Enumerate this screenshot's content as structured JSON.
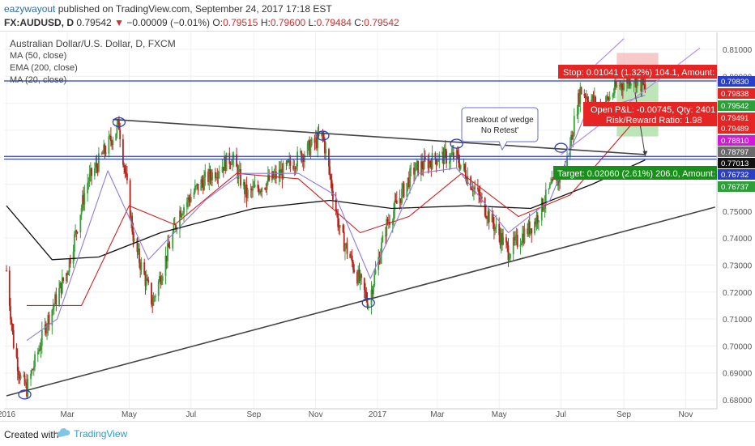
{
  "header": {
    "author": "eazywayout",
    "published": "published on TradingView.com, September 24, 2017 17:18 EST",
    "symbol": "FX:AUDUSD, D",
    "price": "0.79542",
    "change": "−0.00009 (−0.01%)",
    "o_label": "O:",
    "o": "0.79515",
    "h_label": "H:",
    "h": "0.79600",
    "l_label": "L:",
    "l": "0.79484",
    "c_label": "C:",
    "c": "0.79542"
  },
  "legend": {
    "title": "Australian Dollar/U.S. Dollar, D, FXCM",
    "ind1": "MA (50, close)",
    "ind2": "EMA (200, close)",
    "ind3": "MA (20, close)"
  },
  "annotations": {
    "breakout_line1": "Breakout of wedge",
    "breakout_line2": "No Retest'",
    "stop": "Stop: 0.01041 (1.32%) 104.1, Amount:",
    "target": "Target: 0.02060 (2.61%) 206.0, Amount:",
    "pnl": "Open P&L: -0.00745, Qty: 2401",
    "rr": "Risk/Reward Ratio: 1.98"
  },
  "footer": {
    "created": "Created with",
    "brand": "TradingView"
  },
  "colors": {
    "up": "#3a9e3a",
    "down": "#b5241c",
    "ma50": "#d42020",
    "ema200": "#111111",
    "ma20": "#8f7be0",
    "hline": "#2b3fc6",
    "trend": "#444444",
    "stop_fill": "#f4b8b8",
    "target_fill": "#a8dca0",
    "stop_label": "#e52424",
    "target_label": "#1b8f1b"
  },
  "chart_data": {
    "type": "candlestick",
    "symbol": "AUDUSD",
    "timeframe": "D",
    "ylim": [
      0.6775,
      0.814
    ],
    "x_ticks": [
      "2016",
      "Mar",
      "May",
      "Jul",
      "Sep",
      "Nov",
      "2017",
      "Mar",
      "May",
      "Jul",
      "Sep",
      "Nov"
    ],
    "y_ticks": [
      "0.81000",
      "0.80000",
      "0.76000",
      "0.75000",
      "0.74000",
      "0.73000",
      "0.72000",
      "0.71000",
      "0.70000",
      "0.69000",
      "0.68000"
    ],
    "price_key_points": [
      {
        "date": "2016-01-01",
        "price": 0.728
      },
      {
        "date": "2016-01-08",
        "price": 0.701
      },
      {
        "date": "2016-01-15",
        "price": 0.688
      },
      {
        "date": "2016-01-21",
        "price": 0.684
      },
      {
        "date": "2016-02-10",
        "price": 0.709
      },
      {
        "date": "2016-03-01",
        "price": 0.728
      },
      {
        "date": "2016-03-20",
        "price": 0.76
      },
      {
        "date": "2016-04-21",
        "price": 0.782
      },
      {
        "date": "2016-05-06",
        "price": 0.738
      },
      {
        "date": "2016-05-24",
        "price": 0.716
      },
      {
        "date": "2016-06-20",
        "price": 0.75
      },
      {
        "date": "2016-07-10",
        "price": 0.76
      },
      {
        "date": "2016-08-10",
        "price": 0.77
      },
      {
        "date": "2016-08-25",
        "price": 0.756
      },
      {
        "date": "2016-10-01",
        "price": 0.765
      },
      {
        "date": "2016-11-08",
        "price": 0.778
      },
      {
        "date": "2016-11-25",
        "price": 0.742
      },
      {
        "date": "2016-12-23",
        "price": 0.716
      },
      {
        "date": "2017-01-10",
        "price": 0.745
      },
      {
        "date": "2017-02-05",
        "price": 0.765
      },
      {
        "date": "2017-03-01",
        "price": 0.77
      },
      {
        "date": "2017-03-20",
        "price": 0.77
      },
      {
        "date": "2017-04-10",
        "price": 0.756
      },
      {
        "date": "2017-05-10",
        "price": 0.735
      },
      {
        "date": "2017-06-05",
        "price": 0.746
      },
      {
        "date": "2017-06-20",
        "price": 0.758
      },
      {
        "date": "2017-07-05",
        "price": 0.765
      },
      {
        "date": "2017-07-20",
        "price": 0.795
      },
      {
        "date": "2017-08-10",
        "price": 0.788
      },
      {
        "date": "2017-08-25",
        "price": 0.796
      },
      {
        "date": "2017-09-10",
        "price": 0.8
      },
      {
        "date": "2017-09-22",
        "price": 0.7954
      }
    ],
    "ma50_key_points": [
      {
        "date": "2016-01-21",
        "price": 0.715
      },
      {
        "date": "2016-03-15",
        "price": 0.715
      },
      {
        "date": "2016-05-01",
        "price": 0.752
      },
      {
        "date": "2016-06-15",
        "price": 0.745
      },
      {
        "date": "2016-08-15",
        "price": 0.764
      },
      {
        "date": "2016-10-15",
        "price": 0.762
      },
      {
        "date": "2016-12-15",
        "price": 0.742
      },
      {
        "date": "2017-02-01",
        "price": 0.748
      },
      {
        "date": "2017-03-25",
        "price": 0.764
      },
      {
        "date": "2017-05-20",
        "price": 0.748
      },
      {
        "date": "2017-07-10",
        "price": 0.756
      },
      {
        "date": "2017-09-22",
        "price": 0.788
      }
    ],
    "ema200_key_points": [
      {
        "date": "2016-01-01",
        "price": 0.752
      },
      {
        "date": "2016-02-15",
        "price": 0.732
      },
      {
        "date": "2016-04-01",
        "price": 0.733
      },
      {
        "date": "2016-06-01",
        "price": 0.742
      },
      {
        "date": "2016-09-01",
        "price": 0.751
      },
      {
        "date": "2016-11-15",
        "price": 0.754
      },
      {
        "date": "2017-01-15",
        "price": 0.751
      },
      {
        "date": "2017-04-01",
        "price": 0.752
      },
      {
        "date": "2017-06-01",
        "price": 0.751
      },
      {
        "date": "2017-08-01",
        "price": 0.76
      },
      {
        "date": "2017-09-22",
        "price": 0.769
      }
    ],
    "ma20_key_points": [
      {
        "date": "2016-01-21",
        "price": 0.702
      },
      {
        "date": "2016-02-20",
        "price": 0.71
      },
      {
        "date": "2016-04-10",
        "price": 0.765
      },
      {
        "date": "2016-05-20",
        "price": 0.732
      },
      {
        "date": "2016-07-15",
        "price": 0.754
      },
      {
        "date": "2016-08-20",
        "price": 0.764
      },
      {
        "date": "2016-10-15",
        "price": 0.764
      },
      {
        "date": "2016-11-20",
        "price": 0.756
      },
      {
        "date": "2016-12-25",
        "price": 0.725
      },
      {
        "date": "2017-02-10",
        "price": 0.764
      },
      {
        "date": "2017-03-20",
        "price": 0.766
      },
      {
        "date": "2017-05-10",
        "price": 0.742
      },
      {
        "date": "2017-06-20",
        "price": 0.754
      },
      {
        "date": "2017-07-25",
        "price": 0.786
      },
      {
        "date": "2017-09-22",
        "price": 0.793
      }
    ],
    "horizontal_lines": [
      0.7983,
      0.7703,
      0.7693
    ],
    "wedge_upper": [
      {
        "date": "2016-04-15",
        "price": 0.784
      },
      {
        "date": "2017-09-22",
        "price": 0.771
      }
    ],
    "wedge_lower": [
      {
        "date": "2016-01-01",
        "price": 0.6815
      },
      {
        "date": "2017-11-30",
        "price": 0.7515
      }
    ],
    "channel_upper": [
      {
        "date": "2017-07-20",
        "price": 0.799
      },
      {
        "date": "2017-09-01",
        "price": 0.814
      }
    ],
    "channel_lower": [
      {
        "date": "2017-07-01",
        "price": 0.771
      },
      {
        "date": "2017-11-15",
        "price": 0.8105
      }
    ],
    "pivot_circles": [
      {
        "date": "2016-01-19",
        "price": 0.682
      },
      {
        "date": "2016-04-21",
        "price": 0.783
      },
      {
        "date": "2016-11-08",
        "price": 0.778
      },
      {
        "date": "2016-12-23",
        "price": 0.716
      },
      {
        "date": "2017-03-20",
        "price": 0.775
      },
      {
        "date": "2017-07-01",
        "price": 0.7735
      }
    ],
    "position": {
      "entry": 0.7983,
      "stop": 0.8087,
      "target": 0.7777,
      "from": "2017-08-25",
      "to": "2017-10-05"
    },
    "price_labels": [
      {
        "value": "0.81000",
        "kind": "tick"
      },
      {
        "value": "0.79830",
        "kind": "blue"
      },
      {
        "value": "0.79838",
        "kind": "red"
      },
      {
        "value": "0.79542",
        "kind": "green"
      },
      {
        "value": "0.79491",
        "kind": "red"
      },
      {
        "value": "0.79489",
        "kind": "red"
      },
      {
        "value": "0.78810",
        "kind": "magenta"
      },
      {
        "value": "0.78797",
        "kind": "grey"
      },
      {
        "value": "0.77013",
        "kind": "black"
      },
      {
        "value": "0.76732",
        "kind": "blue"
      },
      {
        "value": "0.76737",
        "kind": "green"
      }
    ]
  }
}
